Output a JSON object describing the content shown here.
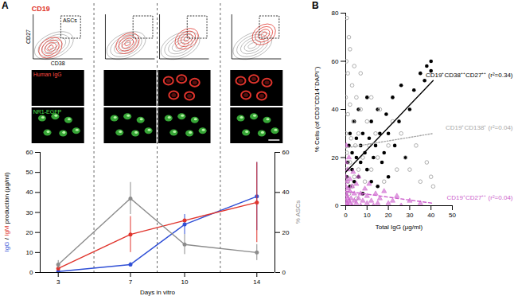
{
  "panel_labels": [
    "A",
    "B"
  ],
  "flow_cytometry": {
    "title": "CD19",
    "x_label": "CD38",
    "y_label": "CD27",
    "gate_label": "ASCs"
  },
  "microscopy": {
    "row_labels": [
      "Human IgG",
      "NR1-EGFP"
    ]
  },
  "chart_data": [
    {
      "type": "line",
      "xlabel": "Days in vitro",
      "x": [
        3,
        7,
        10,
        14
      ],
      "xlim": [
        2,
        15
      ],
      "xticks": [
        3,
        7,
        10,
        14
      ],
      "ylabel": "IgG / IgM production (µg/ml)",
      "ylim": [
        0,
        60
      ],
      "yticks": [
        0,
        10,
        20,
        30,
        40,
        50,
        60
      ],
      "y2label": "% ASCs",
      "y2lim": [
        0,
        60
      ],
      "y2ticks": [
        0,
        20,
        40,
        60
      ],
      "marker": "circle",
      "series": [
        {
          "name": "IgG",
          "color": "#2f4fd6",
          "values": [
            0.5,
            4,
            24,
            38
          ],
          "errors": [
            0.3,
            1,
            5,
            17
          ]
        },
        {
          "name": "IgM",
          "color": "#e0342c",
          "values": [
            2,
            19,
            26,
            35
          ],
          "errors": [
            1,
            9,
            null,
            20
          ]
        },
        {
          "name": "% ASCs",
          "color": "#8c8c8c",
          "axis": "y2",
          "values": [
            4,
            37,
            14,
            10
          ],
          "errors": [
            2,
            8,
            5,
            4
          ]
        }
      ]
    },
    {
      "type": "scatter",
      "xlabel": "Total IgG (µg/ml)",
      "ylabel": "% Cells (of CD3⁻CD14⁻DAPI⁻)",
      "xlim": [
        0,
        50
      ],
      "xticks": [
        0,
        10,
        20,
        30,
        40,
        50
      ],
      "ylim": [
        0,
        80
      ],
      "yticks": [
        0,
        20,
        40,
        60,
        80
      ],
      "series": [
        {
          "name": "CD19⁺CD38⁺⁺CD27⁺⁺ (r²=0.34)",
          "color": "#000000",
          "marker": "circle",
          "line_style": "solid",
          "x": [
            0.5,
            1,
            1.5,
            2,
            2,
            3,
            3,
            4,
            4,
            5,
            5,
            6,
            6,
            7,
            7,
            8,
            8,
            9,
            10,
            10,
            11,
            12,
            12,
            13,
            14,
            15,
            15,
            16,
            17,
            18,
            19,
            20,
            20,
            22,
            23,
            25,
            26,
            28,
            30,
            32,
            35,
            37,
            38,
            40,
            40
          ],
          "values": [
            12,
            18,
            25,
            8,
            30,
            15,
            22,
            10,
            35,
            20,
            28,
            12,
            40,
            18,
            25,
            5,
            30,
            22,
            15,
            45,
            28,
            10,
            35,
            20,
            25,
            8,
            40,
            30,
            18,
            22,
            38,
            12,
            30,
            45,
            25,
            35,
            50,
            20,
            40,
            48,
            55,
            52,
            58,
            56,
            60
          ],
          "fit": {
            "x": [
              0,
              41
            ],
            "values": [
              14,
              52
            ]
          }
        },
        {
          "name": "CD19⁺CD138⁺ (r²=0.04)",
          "color": "#a6a6a6",
          "marker": "open_circle",
          "line_style": "dotted",
          "x": [
            0,
            0,
            0,
            0,
            0.3,
            0.5,
            0.5,
            1,
            1,
            1,
            1.5,
            1.5,
            2,
            2,
            2,
            2.5,
            3,
            3,
            3.5,
            4,
            4,
            4.5,
            5,
            5,
            6,
            6,
            7,
            7,
            8,
            9,
            10,
            11,
            12,
            12,
            14,
            15,
            16,
            18,
            20,
            22,
            24,
            26,
            28,
            30,
            33,
            35,
            38,
            40,
            41
          ],
          "values": [
            5,
            15,
            30,
            45,
            60,
            78,
            22,
            10,
            38,
            55,
            70,
            5,
            18,
            42,
            65,
            28,
            8,
            50,
            35,
            12,
            58,
            25,
            45,
            3,
            30,
            15,
            40,
            55,
            20,
            10,
            35,
            25,
            45,
            15,
            30,
            20,
            40,
            10,
            25,
            35,
            15,
            30,
            20,
            15,
            25,
            10,
            18,
            12,
            8
          ],
          "fit": {
            "x": [
              0,
              41
            ],
            "values": [
              24,
              30
            ]
          }
        },
        {
          "name": "CD19⁺CD27⁺⁺ (r²=0.04)",
          "color": "#cc5fcc",
          "marker": "triangle",
          "line_style": "dashed",
          "x": [
            0,
            0,
            0,
            0,
            0,
            0,
            0.3,
            0.5,
            0.5,
            0.5,
            1,
            1,
            1,
            1,
            1.5,
            1.5,
            2,
            2,
            2,
            2.5,
            3,
            3,
            3.5,
            4,
            4,
            5,
            5,
            6,
            6,
            7,
            7,
            8,
            9,
            10,
            10,
            11,
            12,
            13,
            14,
            15,
            16,
            18,
            20,
            22,
            24,
            26,
            30,
            35
          ],
          "values": [
            0,
            2,
            5,
            8,
            12,
            18,
            25,
            1,
            4,
            10,
            0,
            3,
            7,
            15,
            2,
            20,
            1,
            6,
            11,
            3,
            0,
            8,
            14,
            2,
            5,
            1,
            9,
            3,
            12,
            0,
            5,
            2,
            7,
            1,
            4,
            9,
            2,
            0,
            5,
            1,
            3,
            6,
            1,
            2,
            4,
            0,
            2,
            1
          ],
          "fit": {
            "x": [
              0,
              41
            ],
            "values": [
              6,
              1
            ]
          }
        }
      ]
    }
  ]
}
